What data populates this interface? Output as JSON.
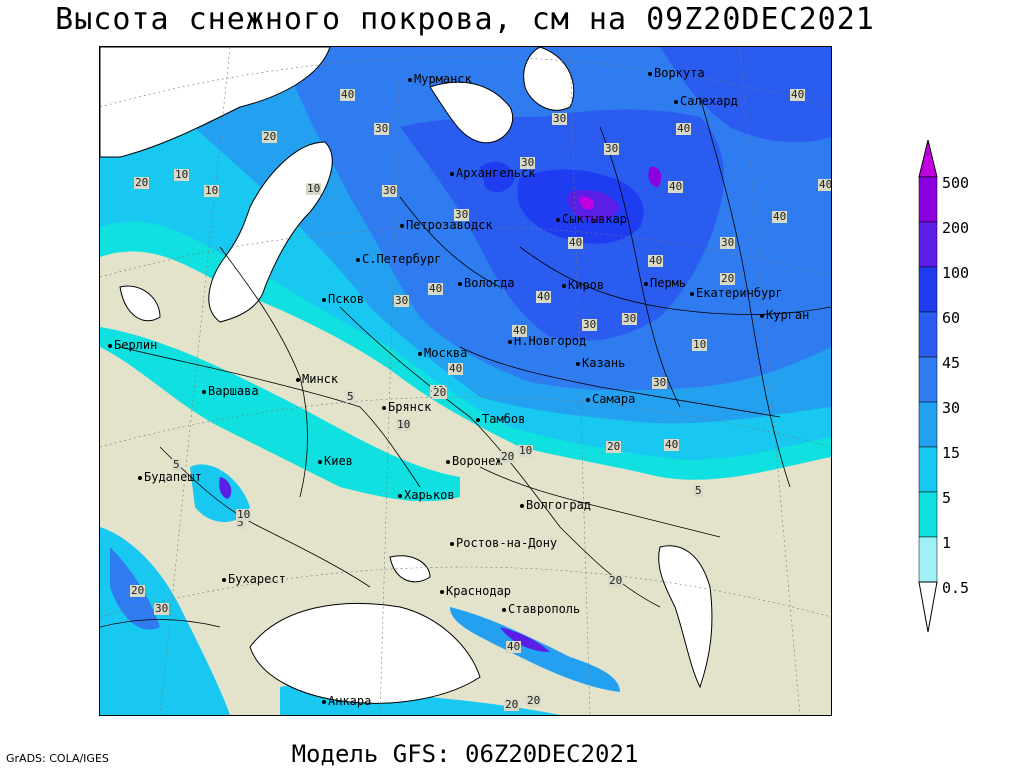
{
  "title": "Высота снежного покрова, см на 09Z20DEC2021",
  "subtitle": "Модель GFS: 06Z20DEC2021",
  "credit": "GrADS: COLA/IGES",
  "legend": {
    "labels": [
      "500",
      "200",
      "100",
      "60",
      "45",
      "30",
      "15",
      "5",
      "1",
      "0.5"
    ],
    "colors": [
      "#c000e0",
      "#8c00e0",
      "#5a1ee6",
      "#1e3cf0",
      "#2a5cf0",
      "#2f7cf0",
      "#23a0f0",
      "#19c8f0",
      "#10e0e0",
      "#a0f0f8",
      "#ffffff"
    ]
  },
  "cities": [
    {
      "name": "Мурманск",
      "id": "murmansk"
    },
    {
      "name": "Воркута",
      "id": "vorkuta"
    },
    {
      "name": "Салехард",
      "id": "salekhard"
    },
    {
      "name": "Архангельск",
      "id": "arkhangelsk"
    },
    {
      "name": "Сыктывкар",
      "id": "syktyvkar"
    },
    {
      "name": "Петрозаводск",
      "id": "petrozavodsk"
    },
    {
      "name": "С.Петербург",
      "id": "spb"
    },
    {
      "name": "Вологда",
      "id": "vologda"
    },
    {
      "name": "Киров",
      "id": "kirov"
    },
    {
      "name": "Пермь",
      "id": "perm"
    },
    {
      "name": "Екатеринбург",
      "id": "ekaterinburg"
    },
    {
      "name": "Курган",
      "id": "kurgan"
    },
    {
      "name": "Псков",
      "id": "pskov"
    },
    {
      "name": "Берлин",
      "id": "berlin"
    },
    {
      "name": "Москва",
      "id": "moskva"
    },
    {
      "name": "Н.Новгород",
      "id": "nnovgorod"
    },
    {
      "name": "Казань",
      "id": "kazan"
    },
    {
      "name": "Варшава",
      "id": "varshava"
    },
    {
      "name": "Минск",
      "id": "minsk"
    },
    {
      "name": "Брянск",
      "id": "bryansk"
    },
    {
      "name": "Самара",
      "id": "samara"
    },
    {
      "name": "Тамбов",
      "id": "tambov"
    },
    {
      "name": "Киев",
      "id": "kiev"
    },
    {
      "name": "Воронеж",
      "id": "voronezh"
    },
    {
      "name": "Будапешт",
      "id": "budapesht"
    },
    {
      "name": "Харьков",
      "id": "kharkov"
    },
    {
      "name": "Волгоград",
      "id": "volgograd"
    },
    {
      "name": "Ростов-на-Дону",
      "id": "rostov"
    },
    {
      "name": "Бухарест",
      "id": "bukharest"
    },
    {
      "name": "Краснодар",
      "id": "krasnodar"
    },
    {
      "name": "Ставрополь",
      "id": "stavropol"
    },
    {
      "name": "Анкара",
      "id": "ankara"
    }
  ],
  "contour_labels": [
    "40",
    "40",
    "20",
    "10",
    "30",
    "30",
    "30",
    "40",
    "10",
    "20",
    "10",
    "30",
    "30",
    "30",
    "40",
    "40",
    "40",
    "30",
    "40",
    "40",
    "20",
    "30",
    "30",
    "40",
    "40",
    "40",
    "40",
    "40",
    "10",
    "20",
    "30",
    "30",
    "40",
    "5",
    "10",
    "20",
    "10",
    "5",
    "20",
    "5",
    "10",
    "5",
    "20",
    "30",
    "20",
    "40",
    "20",
    "20"
  ]
}
